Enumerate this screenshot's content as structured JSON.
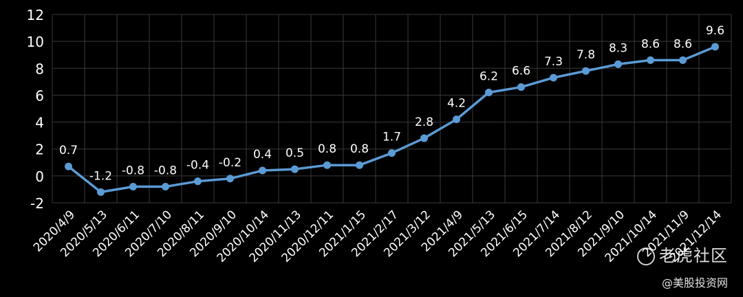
{
  "chart_data": {
    "type": "line",
    "categories": [
      "2020/4/9",
      "2020/5/13",
      "2020/6/11",
      "2020/7/10",
      "2020/8/11",
      "2020/9/10",
      "2020/10/14",
      "2020/11/13",
      "2020/12/11",
      "2021/1/15",
      "2021/2/17",
      "2021/3/12",
      "2021/4/9",
      "2021/5/13",
      "2021/6/15",
      "2021/7/14",
      "2021/8/12",
      "2021/9/10",
      "2021/10/14",
      "2021/11/9",
      "2021/12/14"
    ],
    "values": [
      0.7,
      -1.2,
      -0.8,
      -0.8,
      -0.4,
      -0.2,
      0.4,
      0.5,
      0.8,
      0.8,
      1.7,
      2.8,
      4.2,
      6.2,
      6.6,
      7.3,
      7.8,
      8.3,
      8.6,
      8.6,
      9.6
    ],
    "data_labels": [
      "0.7",
      "-1.2",
      "-0.8",
      "-0.8",
      "-0.4",
      "-0.2",
      "0.4",
      "0.5",
      "0.8",
      "0.8",
      "1.7",
      "2.8",
      "4.2",
      "6.2",
      "6.6",
      "7.3",
      "7.8",
      "8.3",
      "8.6",
      "8.6",
      "9.6"
    ],
    "ylim": [
      -2,
      12
    ],
    "yticks": [
      -2,
      0,
      2,
      4,
      6,
      8,
      10,
      12
    ],
    "grid": true,
    "colors": {
      "background": "#000000",
      "line": "#5b9bd5",
      "grid": "#3a3a3a",
      "text": "#ffffff"
    }
  },
  "watermark": {
    "logo_text": "老虎社区",
    "sub_text": "@美股投资网"
  }
}
